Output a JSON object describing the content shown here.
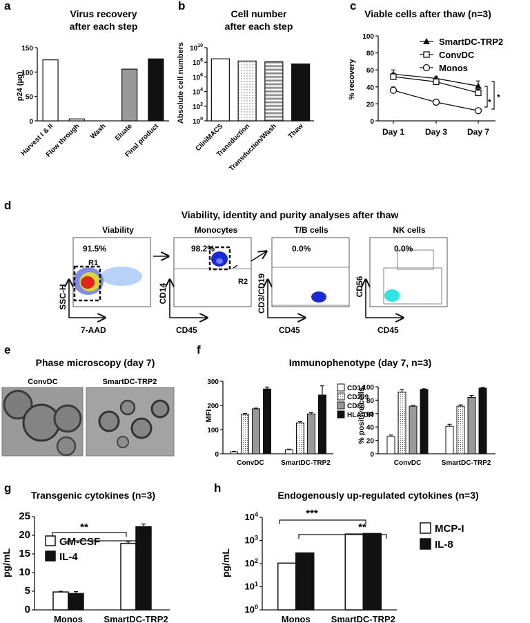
{
  "panels": {
    "a": {
      "letter": "a",
      "title": "Virus recovery",
      "title2": "after each step",
      "ylabel": "p24 (µg)"
    },
    "b": {
      "letter": "b",
      "title": "Cell number",
      "title2": "after each step",
      "ylabel": "Absolute cell numbers"
    },
    "c": {
      "letter": "c",
      "title": "Viable cells after thaw (n=3)",
      "ylabel": "% recovery",
      "sig1": "*",
      "sig2": "*"
    },
    "d": {
      "letter": "d",
      "title": "Viability, identity and purity analyses after thaw",
      "plots": [
        {
          "title": "Viability",
          "pct": "91.5%",
          "gate": "R1",
          "ylabel": "SSC-H",
          "xlabel": "7-AAD"
        },
        {
          "title": "Monocytes",
          "pct": "98.2%",
          "gate": "R2",
          "ylabel": "CD14",
          "xlabel": "CD45"
        },
        {
          "title": "T/B cells",
          "pct": "0.0%",
          "ylabel": "CD3/CD19",
          "xlabel": "CD45"
        },
        {
          "title": "NK cells",
          "pct": "0.0%",
          "ylabel": "CD56",
          "xlabel": "CD45"
        }
      ]
    },
    "e": {
      "letter": "e",
      "title": "Phase microscopy (day 7)",
      "img1": "ConvDC",
      "img2": "SmartDC-TRP2"
    },
    "f": {
      "letter": "f",
      "title": "Immunophenotype (day 7, n=3)",
      "ylabel1": "MFI",
      "ylabel2": "% positive cells"
    },
    "g": {
      "letter": "g",
      "title": "Transgenic cytokines (n=3)",
      "ylabel": "pg/mL",
      "sig1": "**",
      "sig2": "**"
    },
    "h": {
      "letter": "h",
      "title": "Endogenously up-regulated cytokines (n=3)",
      "ylabel": "pg/mL",
      "sig1": "***",
      "sig2": "**"
    }
  },
  "colors": {
    "black": "#111111",
    "white": "#ffffff",
    "gray": "#999999",
    "blue": "#1a2bd6",
    "cyan": "#2ee6e6",
    "red": "#e0241b"
  },
  "chart_data": [
    {
      "id": "a",
      "type": "bar",
      "categories": [
        "Harvest I & II",
        "Flow through",
        "Wash",
        "Eluate",
        "Final product"
      ],
      "values": [
        125,
        4,
        0,
        106,
        127
      ],
      "ylim": [
        0,
        150
      ],
      "yticks": [
        0,
        50,
        100,
        150
      ],
      "fills": [
        "white",
        "white",
        "white",
        "gray",
        "black"
      ],
      "ylabel": "p24 (µg)"
    },
    {
      "id": "b",
      "type": "bar",
      "scale": "log",
      "categories": [
        "CliniMACS",
        "Transduction",
        "Transduction/Wash",
        "Thaw"
      ],
      "values": [
        300000000,
        150000000,
        120000000,
        60000000
      ],
      "ylim": [
        1,
        10000000000
      ],
      "yticks": [
        1,
        100,
        10000,
        1000000,
        100000000,
        10000000000
      ],
      "ytick_labels": [
        "10^0",
        "10^2",
        "10^4",
        "10^6",
        "10^8",
        "10^10"
      ],
      "ylabel": "Absolute cell numbers"
    },
    {
      "id": "c",
      "type": "line",
      "x": [
        "Day 1",
        "Day 3",
        "Day 7"
      ],
      "ylim": [
        0,
        100
      ],
      "yticks": [
        0,
        20,
        40,
        60,
        80,
        100
      ],
      "series": [
        {
          "name": "SmartDC-TRP2",
          "marker": "triangle",
          "values": [
            55,
            50,
            41
          ],
          "errors": [
            5,
            2,
            6
          ]
        },
        {
          "name": "ConvDC",
          "marker": "square",
          "values": [
            52,
            46,
            33
          ],
          "errors": [
            4,
            3,
            4
          ]
        },
        {
          "name": "Monos",
          "marker": "circle",
          "values": [
            36,
            22,
            12
          ],
          "errors": [
            4,
            3,
            2
          ]
        }
      ],
      "ylabel": "% recovery"
    },
    {
      "id": "f1",
      "type": "bar",
      "categories": [
        "ConvDC",
        "SmartDC-TRP2"
      ],
      "ylim": [
        0,
        300
      ],
      "yticks": [
        0,
        100,
        200,
        300
      ],
      "series": [
        {
          "name": "CD14",
          "values": [
            8,
            17
          ],
          "errors": [
            2,
            2
          ],
          "fill": "white"
        },
        {
          "name": "CD209",
          "values": [
            163,
            128
          ],
          "errors": [
            4,
            5
          ],
          "fill": "dots"
        },
        {
          "name": "CD86",
          "values": [
            186,
            165
          ],
          "errors": [
            3,
            5
          ],
          "fill": "gray"
        },
        {
          "name": "HLA-DR",
          "values": [
            268,
            243
          ],
          "errors": [
            8,
            38
          ],
          "fill": "black"
        }
      ],
      "ylabel": "MFI"
    },
    {
      "id": "f2",
      "type": "bar",
      "categories": [
        "ConvDC",
        "SmartDC-TRP2"
      ],
      "ylim": [
        0,
        100
      ],
      "yticks": [
        0,
        20,
        40,
        60,
        80,
        100
      ],
      "series": [
        {
          "name": "CD14",
          "values": [
            26,
            41
          ],
          "errors": [
            2,
            3
          ],
          "fill": "white"
        },
        {
          "name": "CD209",
          "values": [
            92,
            71
          ],
          "errors": [
            4,
            2
          ],
          "fill": "dots"
        },
        {
          "name": "CD86",
          "values": [
            71,
            84
          ],
          "errors": [
            1,
            3
          ],
          "fill": "gray"
        },
        {
          "name": "HLA-DR",
          "values": [
            96,
            98
          ],
          "errors": [
            1,
            1
          ],
          "fill": "black"
        }
      ],
      "ylabel": "% positive cells"
    },
    {
      "id": "g",
      "type": "bar",
      "categories": [
        "Monos",
        "SmartDC-TRP2"
      ],
      "ylim": [
        0,
        25
      ],
      "yticks": [
        0,
        5,
        10,
        15,
        20,
        25
      ],
      "series": [
        {
          "name": "GM-CSF",
          "values": [
            4.8,
            17.8
          ],
          "errors": [
            0.2,
            0.4
          ],
          "fill": "white"
        },
        {
          "name": "IL-4",
          "values": [
            4.4,
            22.3
          ],
          "errors": [
            0.5,
            0.7
          ],
          "fill": "black"
        }
      ],
      "ylabel": "pg/mL"
    },
    {
      "id": "h",
      "type": "bar",
      "scale": "log",
      "categories": [
        "Monos",
        "SmartDC-TRP2"
      ],
      "ylim": [
        1,
        10000
      ],
      "yticks": [
        1,
        10,
        100,
        1000,
        10000
      ],
      "ytick_labels": [
        "10^0",
        "10^1",
        "10^2",
        "10^3",
        "10^4"
      ],
      "series": [
        {
          "name": "MCP-I",
          "values": [
            105,
            1900
          ],
          "errors": [
            0,
            0
          ],
          "fill": "white"
        },
        {
          "name": "IL-8",
          "values": [
            290,
            2000
          ],
          "errors": [
            0,
            0
          ],
          "fill": "black"
        }
      ],
      "ylabel": "pg/mL"
    }
  ]
}
